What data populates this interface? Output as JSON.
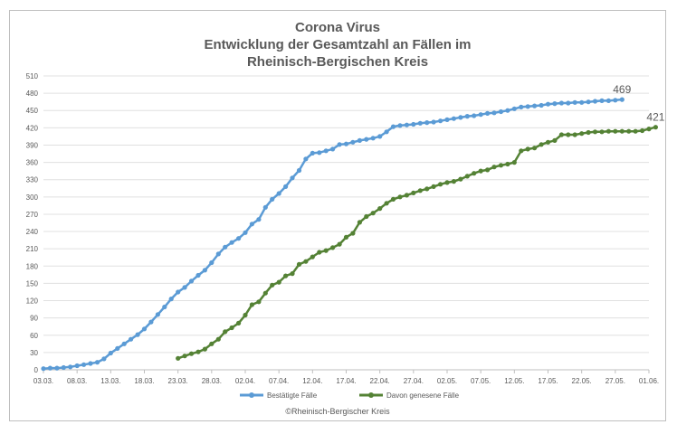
{
  "chart_data": {
    "type": "line",
    "title_lines": [
      "Corona Virus",
      "Entwicklung der Gesamtzahl an Fällen im",
      "Rheinisch-Bergischen Kreis"
    ],
    "xlabel": "",
    "ylabel": "",
    "ylim": [
      0,
      510
    ],
    "yticks": [
      "0",
      "30",
      "60",
      "90",
      "120",
      "150",
      "180",
      "210",
      "240",
      "270",
      "300",
      "330",
      "360",
      "390",
      "420",
      "450",
      "480",
      "510"
    ],
    "x_start": "03.03.",
    "x_end": "01.06.",
    "xticks": [
      "03.03.",
      "08.03.",
      "13.03.",
      "18.03.",
      "23.03.",
      "28.03.",
      "02.04.",
      "07.04.",
      "12.04.",
      "17.04.",
      "22.04.",
      "27.04.",
      "02.05.",
      "07.05.",
      "12.05.",
      "17.05.",
      "22.05.",
      "27.05.",
      "01.06."
    ],
    "grid": "horizontal",
    "legend_position": "bottom",
    "series": [
      {
        "name": "Bestätigte Fälle",
        "color": "#5b9bd5",
        "end_label": "469",
        "start": "03.03.",
        "values": [
          2,
          3,
          3,
          4,
          5,
          7,
          9,
          11,
          13,
          19,
          29,
          37,
          45,
          53,
          61,
          71,
          83,
          96,
          109,
          123,
          135,
          143,
          154,
          164,
          173,
          186,
          201,
          213,
          221,
          228,
          238,
          253,
          261,
          282,
          296,
          306,
          318,
          333,
          346,
          366,
          376,
          377,
          380,
          383,
          391,
          392,
          395,
          398,
          400,
          402,
          405,
          413,
          422,
          424,
          425,
          426,
          428,
          429,
          430,
          432,
          434,
          436,
          438,
          440,
          441,
          443,
          445,
          446,
          448,
          450,
          453,
          456,
          457,
          458,
          459,
          461,
          462,
          463,
          463,
          464,
          464,
          465,
          466,
          467,
          467,
          468,
          469
        ]
      },
      {
        "name": "Davon genesene Fälle",
        "color": "#548235",
        "end_label": "421",
        "start": "23.03.",
        "values": [
          20,
          24,
          28,
          31,
          36,
          45,
          53,
          66,
          73,
          81,
          95,
          113,
          118,
          133,
          147,
          152,
          163,
          167,
          183,
          188,
          196,
          204,
          207,
          212,
          218,
          230,
          237,
          256,
          266,
          272,
          280,
          289,
          296,
          300,
          303,
          307,
          311,
          314,
          318,
          322,
          325,
          327,
          331,
          336,
          341,
          345,
          347,
          352,
          355,
          357,
          360,
          380,
          383,
          385,
          391,
          395,
          398,
          408,
          408,
          408,
          410,
          412,
          413,
          413,
          414,
          414,
          414,
          414,
          414,
          415,
          418,
          421
        ]
      }
    ],
    "source_note": "©Rheinisch-Bergischer Kreis"
  }
}
